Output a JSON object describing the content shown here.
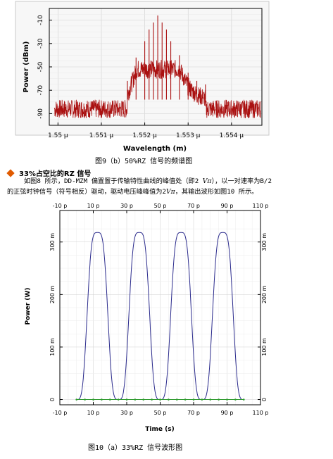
{
  "figure1": {
    "caption": "图9（b）50%RZ 信号的频谱图",
    "y_axis_label": "Power (dBm)",
    "x_axis_label": "Wavelength (m)",
    "y_ticks": [
      "-10",
      "-30",
      "-50",
      "-70",
      "-90"
    ],
    "x_ticks": [
      "1.55 µ",
      "1.551 µ",
      "1.552 µ",
      "1.553 µ",
      "1.554 µ"
    ],
    "trace_color": "#aa1111"
  },
  "section": {
    "bullet_icon": "diamond-icon",
    "bullet_color": "#e05a00",
    "title": "33%占空比的RZ 信号"
  },
  "paragraph": {
    "line1_a": "如图8 所示，DD-MZM 偏置置于传输特性曲线的峰值处（即2 ",
    "line1_sym": "Vπ",
    "line1_b": "），以一对速率为B/2",
    "line2_a": "的正弦时钟信号（符号相反）驱动，驱动电压峰峰值为2",
    "line2_sym": "Vπ",
    "line2_b": "，其输出波形如图10 所示。"
  },
  "figure2": {
    "caption": "图10（a）33%RZ 信号波形图",
    "y_axis_label": "Power (W)",
    "x_axis_label": "Time (s)",
    "x_ticks": [
      "-10 p",
      "10 p",
      "30 p",
      "50 p",
      "70 p",
      "90 p",
      "110 p"
    ],
    "y_ticks": [
      "300 m",
      "200 m",
      "100 m",
      "0"
    ],
    "trace_color": "#2a2a8c",
    "baseline_color": "#2f9a2f"
  },
  "chart_data": [
    {
      "type": "line",
      "title": "",
      "xlabel": "Wavelength (m)",
      "ylabel": "Power (dBm)",
      "xlim": [
        1.5498e-06,
        1.5547e-06
      ],
      "ylim": [
        -100,
        0
      ],
      "grid": true,
      "series": [
        {
          "x": [
            1.5516e-06,
            1.5518e-06,
            1.552e-06,
            1.5521e-06,
            1.5522e-06,
            1.5523e-06,
            1.5524e-06,
            1.5525e-06,
            1.5526e-06,
            1.5528e-06,
            1.553e-06,
            1.5532e-06,
            1.5534e-06
          ],
          "values": [
            -62,
            -42,
            -28,
            -18,
            -12,
            -6,
            -12,
            -18,
            -28,
            -40,
            -55,
            -62,
            -65
          ]
        }
      ]
    },
    {
      "type": "line",
      "title": "",
      "xlabel": "Time (s)",
      "ylabel": "Power (W)",
      "xlim": [
        -1e-11,
        1.1e-10
      ],
      "ylim": [
        -0.01,
        0.36
      ],
      "grid": true,
      "series": [
        {
          "x": [
            1.25e-11,
            3.75e-11,
            6.25e-11,
            8.75e-11
          ],
          "values": [
            0.318,
            0.318,
            0.318,
            0.318
          ]
        }
      ]
    }
  ]
}
